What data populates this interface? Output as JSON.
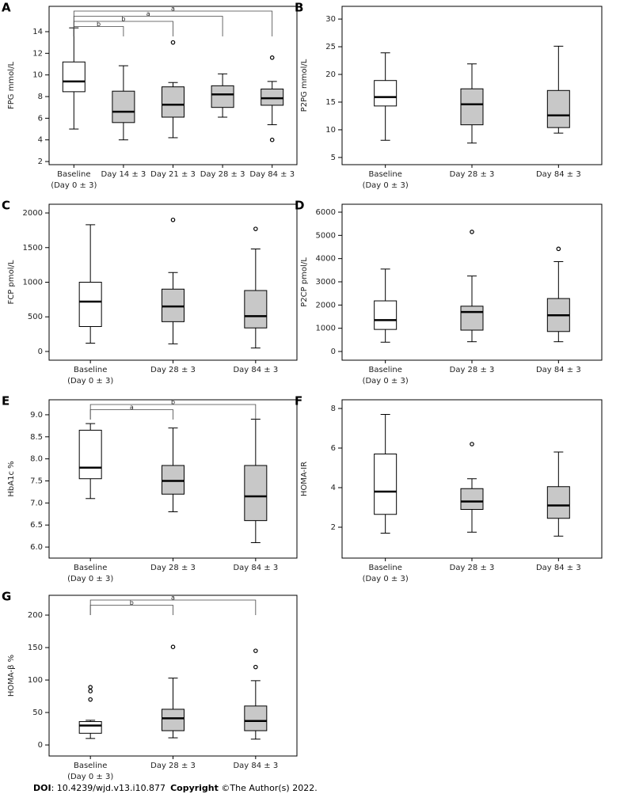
{
  "chart_data": [
    {
      "type": "box",
      "panel": "A",
      "ylabel": "FPG mmol/L",
      "categories": [
        [
          "Baseline",
          "(Day 0 ± 3)"
        ],
        [
          "Day 14 ± 3"
        ],
        [
          "Day 21 ± 3"
        ],
        [
          "Day 28 ± 3"
        ],
        [
          "Day 84 ± 3"
        ]
      ],
      "box_colors": [
        "#ffffff",
        "#c8c8c8",
        "#c8c8c8",
        "#c8c8c8",
        "#c8c8c8"
      ],
      "boxes": [
        {
          "min": 5.0,
          "q1": 8.45,
          "median": 9.4,
          "q3": 11.2,
          "max": 14.35,
          "outliers": []
        },
        {
          "min": 4.0,
          "q1": 5.6,
          "median": 6.6,
          "q3": 8.5,
          "max": 10.85,
          "outliers": []
        },
        {
          "min": 4.2,
          "q1": 6.1,
          "median": 7.25,
          "q3": 8.9,
          "max": 9.3,
          "outliers": [
            13.0
          ]
        },
        {
          "min": 6.1,
          "q1": 7.0,
          "median": 8.2,
          "q3": 9.0,
          "max": 10.1,
          "outliers": []
        },
        {
          "min": 5.4,
          "q1": 7.2,
          "median": 7.85,
          "q3": 8.7,
          "max": 9.4,
          "outliers": [
            11.6,
            4.0
          ]
        }
      ],
      "significance": [
        null,
        "b",
        "b",
        "a",
        "a"
      ],
      "ylim": [
        1.71,
        16.34
      ],
      "yticks": [
        2,
        4,
        6,
        8,
        10,
        12,
        14
      ]
    },
    {
      "type": "box",
      "panel": "B",
      "ylabel": "P2PG mmol/L",
      "categories": [
        [
          "Baseline",
          "(Day 0 ± 3)"
        ],
        [
          "Day 28 ± 3"
        ],
        [
          "Day 84 ± 3"
        ]
      ],
      "box_colors": [
        "#ffffff",
        "#c8c8c8",
        "#c8c8c8"
      ],
      "boxes": [
        {
          "min": 8.1,
          "q1": 14.3,
          "median": 15.9,
          "q3": 18.9,
          "max": 23.9,
          "outliers": []
        },
        {
          "min": 7.6,
          "q1": 10.9,
          "median": 14.6,
          "q3": 17.4,
          "max": 21.9,
          "outliers": []
        },
        {
          "min": 9.4,
          "q1": 10.4,
          "median": 12.6,
          "q3": 17.1,
          "max": 25.1,
          "outliers": []
        }
      ],
      "ylim": [
        3.7,
        32.3
      ],
      "yticks": [
        5,
        10,
        15,
        20,
        25,
        30
      ]
    },
    {
      "type": "box",
      "panel": "C",
      "ylabel": "FCP pmol/L",
      "categories": [
        [
          "Baseline",
          "(Day 0 ± 3)"
        ],
        [
          "Day 28 ± 3"
        ],
        [
          "Day 84 ± 3"
        ]
      ],
      "box_colors": [
        "#ffffff",
        "#c8c8c8",
        "#c8c8c8"
      ],
      "boxes": [
        {
          "min": 120,
          "q1": 360,
          "median": 720,
          "q3": 1000,
          "max": 1830,
          "outliers": []
        },
        {
          "min": 110,
          "q1": 430,
          "median": 650,
          "q3": 900,
          "max": 1140,
          "outliers": [
            1900
          ]
        },
        {
          "min": 50,
          "q1": 340,
          "median": 510,
          "q3": 880,
          "max": 1480,
          "outliers": [
            1770
          ]
        }
      ],
      "ylim": [
        -126,
        2126
      ],
      "yticks": [
        0,
        500,
        1000,
        1500,
        2000
      ]
    },
    {
      "type": "box",
      "panel": "D",
      "ylabel": "P2CP pmol/L",
      "categories": [
        [
          "Baseline",
          "(Day 0 ± 3)"
        ],
        [
          "Day 28 ± 3"
        ],
        [
          "Day 84 ± 3"
        ]
      ],
      "box_colors": [
        "#ffffff",
        "#c8c8c8",
        "#c8c8c8"
      ],
      "boxes": [
        {
          "min": 400,
          "q1": 950,
          "median": 1350,
          "q3": 2180,
          "max": 3550,
          "outliers": []
        },
        {
          "min": 420,
          "q1": 920,
          "median": 1700,
          "q3": 1950,
          "max": 3250,
          "outliers": [
            5150
          ]
        },
        {
          "min": 420,
          "q1": 860,
          "median": 1560,
          "q3": 2280,
          "max": 3870,
          "outliers": [
            4420
          ]
        }
      ],
      "ylim": [
        -375,
        6341
      ],
      "yticks": [
        0,
        1000,
        2000,
        3000,
        4000,
        5000,
        6000
      ]
    },
    {
      "type": "box",
      "panel": "E",
      "ylabel": "HbA1c %",
      "categories": [
        [
          "Baseline",
          "(Day 0 ± 3)"
        ],
        [
          "Day 28 ± 3"
        ],
        [
          "Day 84 ± 3"
        ]
      ],
      "box_colors": [
        "#ffffff",
        "#c8c8c8",
        "#c8c8c8"
      ],
      "boxes": [
        {
          "min": 7.1,
          "q1": 7.55,
          "median": 7.8,
          "q3": 8.65,
          "max": 8.8,
          "outliers": []
        },
        {
          "min": 6.8,
          "q1": 7.2,
          "median": 7.5,
          "q3": 7.85,
          "max": 8.7,
          "outliers": []
        },
        {
          "min": 6.1,
          "q1": 6.6,
          "median": 7.15,
          "q3": 7.85,
          "max": 8.9,
          "outliers": []
        }
      ],
      "significance": [
        null,
        "a",
        "b"
      ],
      "ylim": [
        5.75,
        9.34
      ],
      "yticks": [
        {
          "value": 6,
          "label": "6.0"
        },
        6.5,
        {
          "value": 7,
          "label": "7.0"
        },
        7.5,
        {
          "value": 8,
          "label": "8.0"
        },
        8.5,
        {
          "value": 9,
          "label": "9.0"
        }
      ]
    },
    {
      "type": "box",
      "panel": "F",
      "ylabel": "HOMA-IR",
      "categories": [
        [
          "Baseline",
          "(Day 0 ± 3)"
        ],
        [
          "Day 28 ± 3"
        ],
        [
          "Day 84 ± 3"
        ]
      ],
      "box_colors": [
        "#ffffff",
        "#c8c8c8",
        "#c8c8c8"
      ],
      "boxes": [
        {
          "min": 1.7,
          "q1": 2.65,
          "median": 3.8,
          "q3": 5.7,
          "max": 7.7,
          "outliers": []
        },
        {
          "min": 1.75,
          "q1": 2.9,
          "median": 3.3,
          "q3": 3.95,
          "max": 4.45,
          "outliers": [
            6.2
          ]
        },
        {
          "min": 1.55,
          "q1": 2.45,
          "median": 3.1,
          "q3": 4.05,
          "max": 5.8,
          "outliers": []
        }
      ],
      "ylim": [
        0.44,
        8.44
      ],
      "yticks": [
        2,
        4,
        6,
        8
      ]
    },
    {
      "type": "box",
      "panel": "G",
      "ylabel": "HOMA-β %",
      "categories": [
        [
          "Baseline",
          "(Day 0 ± 3)"
        ],
        [
          "Day 28 ± 3"
        ],
        [
          "Day 84 ± 3"
        ]
      ],
      "box_colors": [
        "#ffffff",
        "#c8c8c8",
        "#c8c8c8"
      ],
      "boxes": [
        {
          "min": 10,
          "q1": 18,
          "median": 30,
          "q3": 36,
          "max": 38,
          "outliers": [
            89,
            83,
            70
          ]
        },
        {
          "min": 11,
          "q1": 22,
          "median": 41,
          "q3": 55,
          "max": 103,
          "outliers": [
            151
          ]
        },
        {
          "min": 9,
          "q1": 22,
          "median": 37,
          "q3": 60,
          "max": 99,
          "outliers": [
            145,
            120
          ]
        }
      ],
      "significance": [
        null,
        "b",
        "a"
      ],
      "ylim": [
        -17,
        230.5
      ],
      "yticks": [
        0,
        50,
        100,
        150,
        200
      ]
    }
  ],
  "footer": {
    "doi_label": "DOI",
    "doi": ": 10.4239/wjd.v13.i10.877",
    "copyright_label": "Copyright",
    "copyright": " ©The Author(s) 2022."
  }
}
